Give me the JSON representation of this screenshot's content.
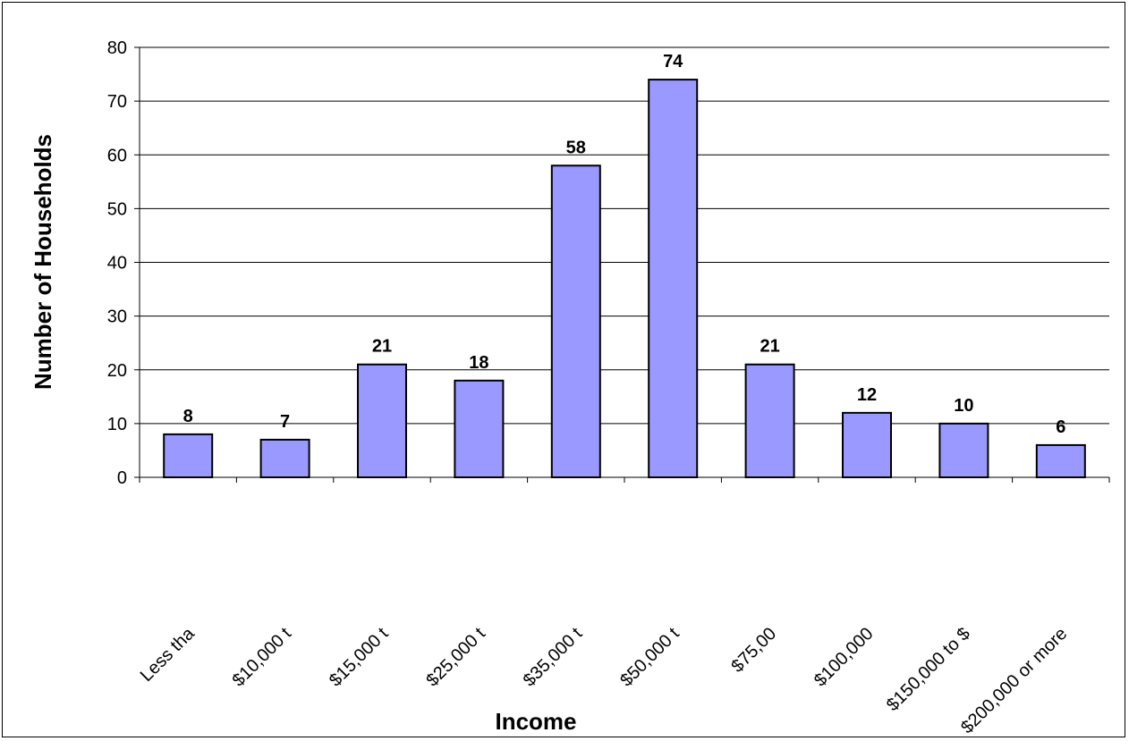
{
  "chart_data": {
    "type": "bar",
    "title": "",
    "xlabel": "Income",
    "ylabel": "Number of Households",
    "categories": [
      "Less tha",
      "$10,000 t",
      "$15,000 t",
      "$25,000 t",
      "$35,000 t",
      "$50,000 t",
      "$75,00",
      "$100,000",
      "$150,000 to $",
      "$200,000 or more"
    ],
    "values": [
      8,
      7,
      21,
      18,
      58,
      74,
      21,
      12,
      10,
      6
    ],
    "ylim": [
      0,
      80
    ],
    "yticks": [
      0,
      10,
      20,
      30,
      40,
      50,
      60,
      70,
      80
    ],
    "grid": true,
    "legend": "none",
    "bar_color": "#9999ff",
    "bar_stroke": "#000000"
  }
}
